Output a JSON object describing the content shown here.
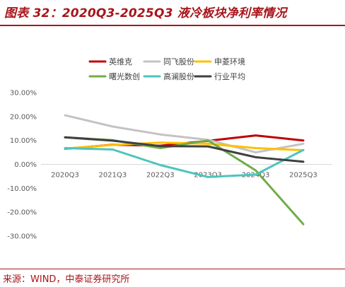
{
  "header": {
    "title": "图表 32：2020Q3-2025Q3 液冷板块净利率情况"
  },
  "footer": {
    "source": "来源：WIND，中泰证券研究所"
  },
  "chart_data": {
    "type": "line",
    "categories": [
      "2020Q3",
      "2021Q3",
      "2022Q3",
      "2023Q3",
      "2024Q3",
      "2025Q3"
    ],
    "y_tick_labels": [
      "30.00%",
      "20.00%",
      "10.00%",
      "0.00%",
      "-10.00%",
      "-20.00%",
      "-30.00%"
    ],
    "ylim": [
      -30,
      30
    ],
    "y_unit": "%",
    "grid": false,
    "legend_position": "top",
    "series": [
      {
        "name": "英维克",
        "color": "#c00000",
        "values": [
          6.5,
          8.2,
          7.8,
          9.8,
          12.1,
          10.0
        ]
      },
      {
        "name": "同飞股份",
        "color": "#c3c3c3",
        "values": [
          20.5,
          15.8,
          12.5,
          10.3,
          5.0,
          8.6
        ]
      },
      {
        "name": "申菱环境",
        "color": "#ffc000",
        "values": [
          6.6,
          8.1,
          9.1,
          8.6,
          6.8,
          5.9
        ]
      },
      {
        "name": "曙光数创",
        "color": "#70ad47",
        "values": [
          11.3,
          10.1,
          6.8,
          10.0,
          -2.5,
          -25.0
        ]
      },
      {
        "name": "高澜股份",
        "color": "#4bc5bd",
        "values": [
          6.8,
          6.2,
          -0.3,
          -5.3,
          -4.3,
          6.0
        ]
      },
      {
        "name": "行业平均",
        "color": "#404040",
        "values": [
          11.3,
          9.9,
          7.6,
          7.5,
          3.0,
          1.1
        ]
      }
    ]
  }
}
